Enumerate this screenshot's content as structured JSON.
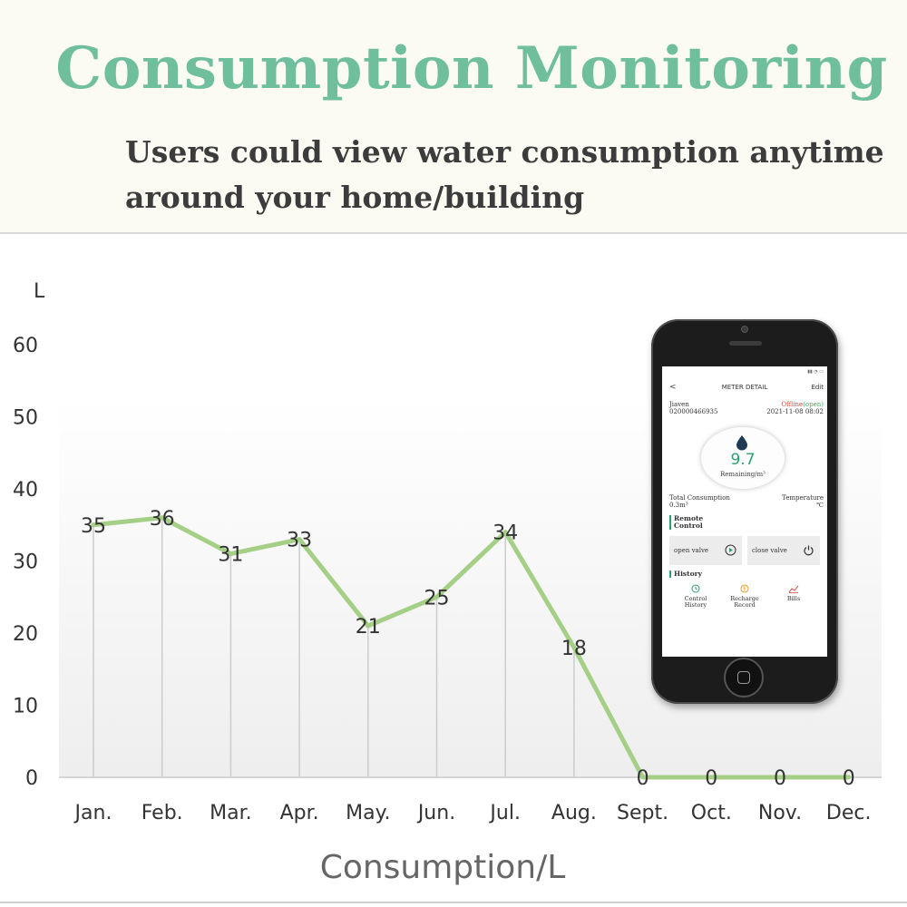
{
  "header": {
    "title": "Consumption Monitoring",
    "subtitle_line1": "Users could view water consumption anytime",
    "subtitle_line2": "around your home/building"
  },
  "chart_data": {
    "type": "line",
    "categories": [
      "Jan.",
      "Feb.",
      "Mar.",
      "Apr.",
      "May.",
      "Jun.",
      "Jul.",
      "Aug.",
      "Sept.",
      "Oct.",
      "Nov.",
      "Dec."
    ],
    "values": [
      35,
      36,
      31,
      33,
      21,
      25,
      34,
      18,
      0,
      0,
      0,
      0
    ],
    "ylabel": "L",
    "xlabel": "Consumption/L",
    "ylim": [
      0,
      60
    ],
    "yticks": [
      0,
      10,
      20,
      30,
      40,
      50,
      60
    ],
    "line_color": "#a5cf86",
    "grid": "vertical drop lines",
    "data_labels": true
  },
  "phone": {
    "nav_back": "<",
    "nav_title": "METER DETAIL",
    "nav_edit": "Edit",
    "user_name": "Jiaven",
    "meter_no": "020000466935",
    "status_offline": "Offline",
    "status_open": "(open)",
    "datetime": "2021-11-08 08:02",
    "remaining_value": "9.7",
    "remaining_label": "Remaining/m³",
    "total_label": "Total Consumption",
    "total_value": "0.3m³",
    "temp_label": "Temperature",
    "temp_value": "℃",
    "remote_title_1": "Remote",
    "remote_title_2": "Control",
    "open_valve": "open valve",
    "close_valve": "close valve",
    "history_title": "History",
    "history_items": [
      {
        "line1": "Control",
        "line2": "History"
      },
      {
        "line1": "Recharge",
        "line2": "Record"
      },
      {
        "line1": "Bills",
        "line2": ""
      }
    ],
    "accent_color": "#2aa06e",
    "offline_color": "#d44a3a"
  }
}
